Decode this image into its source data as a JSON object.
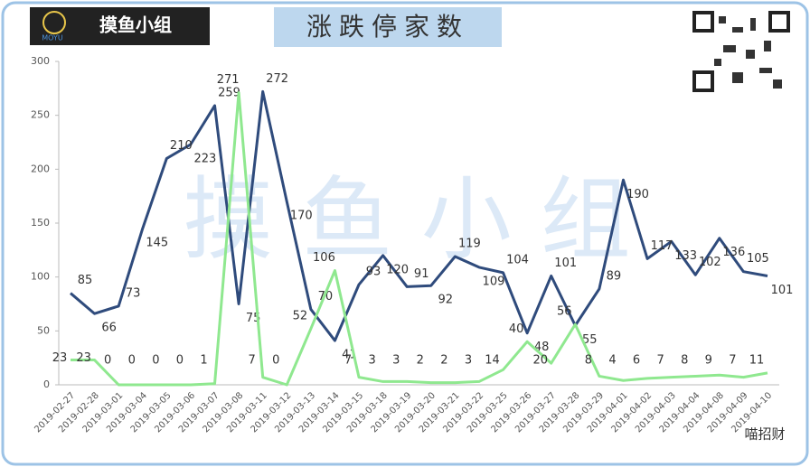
{
  "chart_data": {
    "type": "line",
    "title": "涨跌停家数",
    "x": [
      "2019-02-27",
      "2019-02-28",
      "2019-03-01",
      "2019-03-04",
      "2019-03-05",
      "2019-03-06",
      "2019-03-07",
      "2019-03-08",
      "2019-03-11",
      "2019-03-12",
      "2019-03-13",
      "2019-03-14",
      "2019-03-15",
      "2019-03-18",
      "2019-03-19",
      "2019-03-20",
      "2019-03-21",
      "2019-03-22",
      "2019-03-25",
      "2019-03-26",
      "2019-03-27",
      "2019-03-28",
      "2019-03-29",
      "2019-04-01",
      "2019-04-02",
      "2019-04-03",
      "2019-04-04",
      "2019-04-08",
      "2019-04-09",
      "2019-04-10"
    ],
    "series": [
      {
        "color": "#2f4b7c",
        "values": [
          85,
          66,
          73,
          145,
          210,
          223,
          259,
          75,
          272,
          170,
          70,
          41,
          93,
          120,
          91,
          92,
          119,
          109,
          104,
          48,
          101,
          55,
          89,
          190,
          117,
          133,
          102,
          136,
          105,
          101
        ]
      },
      {
        "color": "#8fe88f",
        "values": [
          23,
          23,
          0,
          0,
          0,
          0,
          1,
          271,
          7,
          0,
          52,
          106,
          7,
          3,
          3,
          2,
          2,
          3,
          14,
          40,
          20,
          56,
          8,
          4,
          6,
          7,
          8,
          9,
          7,
          11
        ]
      }
    ],
    "ylim": [
      0,
      300
    ],
    "yticks": [
      0,
      50,
      100,
      150,
      200,
      250,
      300
    ],
    "grid": false
  },
  "logo": {
    "text": "摸鱼小组",
    "sub": "MOYU"
  },
  "watermark": "摸 鱼 小 组",
  "signature": "喵招财"
}
